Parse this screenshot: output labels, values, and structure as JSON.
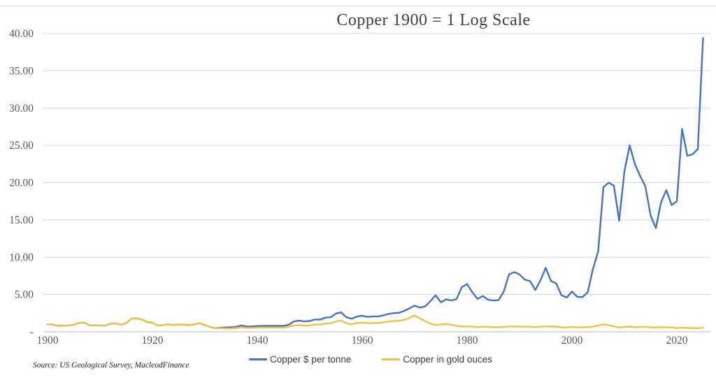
{
  "title": "Copper 1900 = 1 Log Scale",
  "source": "Source: US Geological Survey, MacleodFinance",
  "colors": {
    "copper_usd": "#4472C4",
    "copper_gold": "#F0C242",
    "gridline": "#D9D9D9",
    "axis_line": "#BFBFBF",
    "title_text": "#404040",
    "tick_text": "#595959"
  },
  "chart_data": {
    "type": "line",
    "title": "Copper 1900 = 1 Log Scale",
    "xlabel": "",
    "ylabel": "",
    "x_start": 1900,
    "x_step": 1,
    "xlim": [
      1900,
      2026
    ],
    "ylim": [
      0,
      40
    ],
    "grid": true,
    "legend_position": "bottom",
    "x_ticks": [
      1900,
      1920,
      1940,
      1960,
      1980,
      2000,
      2020
    ],
    "y_ticks": [
      {
        "label": "40.00",
        "value": 40
      },
      {
        "label": "35.00",
        "value": 35
      },
      {
        "label": "30.00",
        "value": 30
      },
      {
        "label": "25.00",
        "value": 25
      },
      {
        "label": "20.00",
        "value": 20
      },
      {
        "label": "15.00",
        "value": 15
      },
      {
        "label": "10.00",
        "value": 10
      },
      {
        "label": "5.00",
        "value": 5
      },
      {
        "label": "-",
        "value": 0
      }
    ],
    "series": [
      {
        "name": "Copper $ per tonne",
        "color": "#4472C4",
        "values": [
          1.0,
          0.97,
          0.8,
          0.83,
          0.83,
          0.95,
          1.18,
          1.25,
          0.88,
          0.87,
          0.85,
          0.83,
          1.08,
          1.13,
          0.95,
          1.15,
          1.75,
          1.8,
          1.65,
          1.3,
          1.22,
          0.85,
          0.9,
          1.0,
          0.92,
          0.97,
          0.95,
          0.9,
          1.0,
          1.15,
          0.9,
          0.65,
          0.5,
          0.55,
          0.58,
          0.6,
          0.67,
          0.85,
          0.7,
          0.72,
          0.78,
          0.8,
          0.8,
          0.8,
          0.8,
          0.8,
          0.95,
          1.4,
          1.5,
          1.4,
          1.45,
          1.65,
          1.65,
          1.9,
          1.95,
          2.45,
          2.6,
          1.95,
          1.75,
          2.05,
          2.15,
          2.0,
          2.05,
          2.05,
          2.2,
          2.4,
          2.5,
          2.55,
          2.8,
          3.15,
          3.5,
          3.25,
          3.4,
          4.1,
          4.9,
          3.95,
          4.35,
          4.2,
          4.4,
          6.0,
          6.4,
          5.3,
          4.4,
          4.8,
          4.3,
          4.2,
          4.25,
          5.4,
          7.7,
          8.0,
          7.7,
          7.0,
          6.8,
          5.6,
          6.9,
          8.6,
          6.8,
          6.5,
          4.9,
          4.6,
          5.4,
          4.7,
          4.65,
          5.3,
          8.4,
          10.8,
          19.4,
          20.0,
          19.6,
          14.9,
          21.5,
          25.0,
          22.5,
          20.9,
          19.5,
          15.6,
          13.9,
          17.4,
          19.0,
          17.0,
          17.5,
          27.2,
          23.6,
          23.8,
          24.5,
          39.4
        ]
      },
      {
        "name": "Copper in gold ouces",
        "color": "#F0C242",
        "values": [
          1.0,
          0.97,
          0.8,
          0.83,
          0.83,
          0.95,
          1.18,
          1.25,
          0.88,
          0.87,
          0.85,
          0.83,
          1.08,
          1.13,
          0.95,
          1.15,
          1.75,
          1.8,
          1.65,
          1.3,
          1.22,
          0.85,
          0.9,
          1.0,
          0.92,
          0.97,
          0.95,
          0.9,
          1.0,
          1.15,
          0.9,
          0.65,
          0.5,
          0.5,
          0.42,
          0.45,
          0.5,
          0.62,
          0.52,
          0.53,
          0.57,
          0.58,
          0.58,
          0.58,
          0.58,
          0.58,
          0.68,
          0.85,
          0.9,
          0.82,
          0.85,
          0.97,
          0.97,
          1.1,
          1.12,
          1.4,
          1.5,
          1.12,
          1.0,
          1.18,
          1.22,
          1.15,
          1.18,
          1.18,
          1.27,
          1.38,
          1.45,
          1.47,
          1.62,
          1.85,
          2.2,
          1.8,
          1.45,
          1.1,
          0.92,
          0.97,
          1.05,
          0.95,
          0.8,
          0.7,
          0.72,
          0.68,
          0.62,
          0.68,
          0.65,
          0.62,
          0.62,
          0.65,
          0.72,
          0.7,
          0.7,
          0.68,
          0.68,
          0.62,
          0.68,
          0.72,
          0.7,
          0.7,
          0.6,
          0.58,
          0.65,
          0.6,
          0.6,
          0.62,
          0.7,
          0.82,
          1.0,
          0.9,
          0.72,
          0.58,
          0.65,
          0.7,
          0.62,
          0.65,
          0.65,
          0.62,
          0.58,
          0.62,
          0.62,
          0.58,
          0.5,
          0.55,
          0.52,
          0.5,
          0.48,
          0.55
        ]
      }
    ]
  }
}
